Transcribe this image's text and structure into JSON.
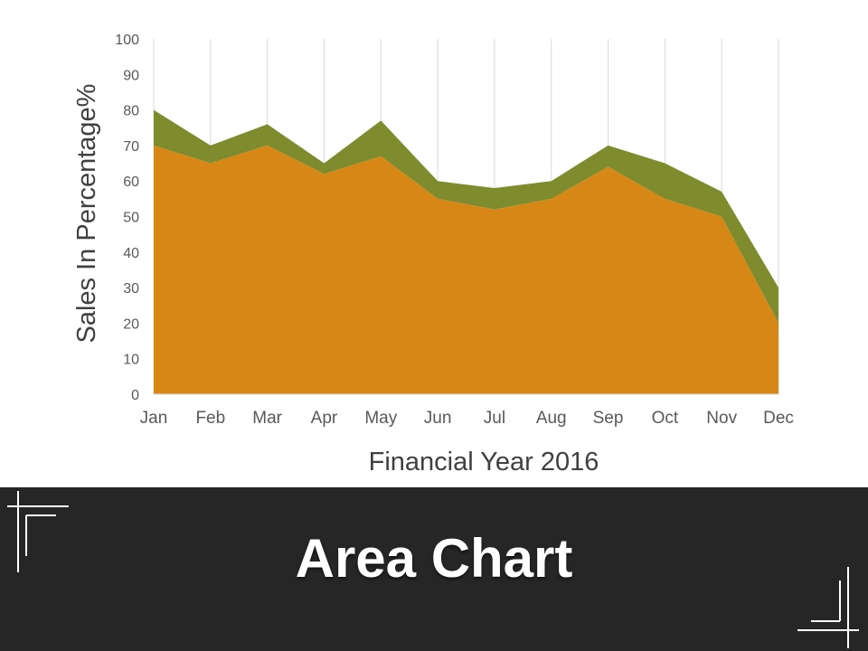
{
  "slide": {
    "title": "Area Chart"
  },
  "colors": {
    "series_base": "#d68716",
    "series_top": "#7f8c2d",
    "gridline": "#d9d9d9",
    "axis_text": "#595959",
    "band": "#262626"
  },
  "chart_data": {
    "type": "area",
    "stacked": true,
    "categories": [
      "Jan",
      "Feb",
      "Mar",
      "Apr",
      "May",
      "Jun",
      "Jul",
      "Aug",
      "Sep",
      "Oct",
      "Nov",
      "Dec"
    ],
    "series": [
      {
        "values": [
          70,
          65,
          70,
          62,
          67,
          55,
          52,
          55,
          64,
          55,
          50,
          20
        ]
      },
      {
        "values": [
          10,
          5,
          6,
          3,
          10,
          5,
          6,
          5,
          6,
          10,
          7,
          10
        ]
      }
    ],
    "xlabel": "Financial Year 2016",
    "ylabel": "Sales In Percentage%",
    "ylim": [
      0,
      100
    ],
    "yticks": [
      "0",
      "10",
      "20",
      "30",
      "40",
      "50",
      "60",
      "70",
      "80",
      "90",
      "100"
    ],
    "grid": "vertical",
    "legend": "none"
  }
}
